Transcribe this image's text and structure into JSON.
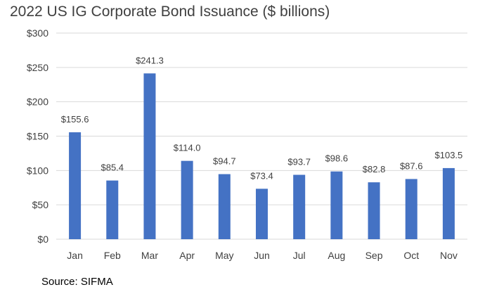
{
  "chart_data": {
    "type": "bar",
    "title": "2022 US IG Corporate Bond Issuance ($ billions)",
    "xlabel": "",
    "ylabel": "",
    "categories": [
      "Jan",
      "Feb",
      "Mar",
      "Apr",
      "May",
      "Jun",
      "Jul",
      "Aug",
      "Sep",
      "Oct",
      "Nov"
    ],
    "values": [
      155.6,
      85.4,
      241.3,
      114.0,
      94.7,
      73.4,
      93.7,
      98.6,
      82.8,
      87.6,
      103.5
    ],
    "data_labels": [
      "$155.6",
      "$85.4",
      "$241.3",
      "$114.0",
      "$94.7",
      "$73.4",
      "$93.7",
      "$98.6",
      "$82.8",
      "$87.6",
      "$103.5"
    ],
    "ylim": [
      0,
      300
    ],
    "yticks": [
      0,
      50,
      100,
      150,
      200,
      250,
      300
    ],
    "ytick_labels": [
      "$0",
      "$50",
      "$100",
      "$150",
      "$200",
      "$250",
      "$300"
    ],
    "grid": true,
    "legend": "none",
    "bar_color": "#4472C4",
    "grid_color": "#D9D9D9"
  },
  "source": "Source: SIFMA"
}
